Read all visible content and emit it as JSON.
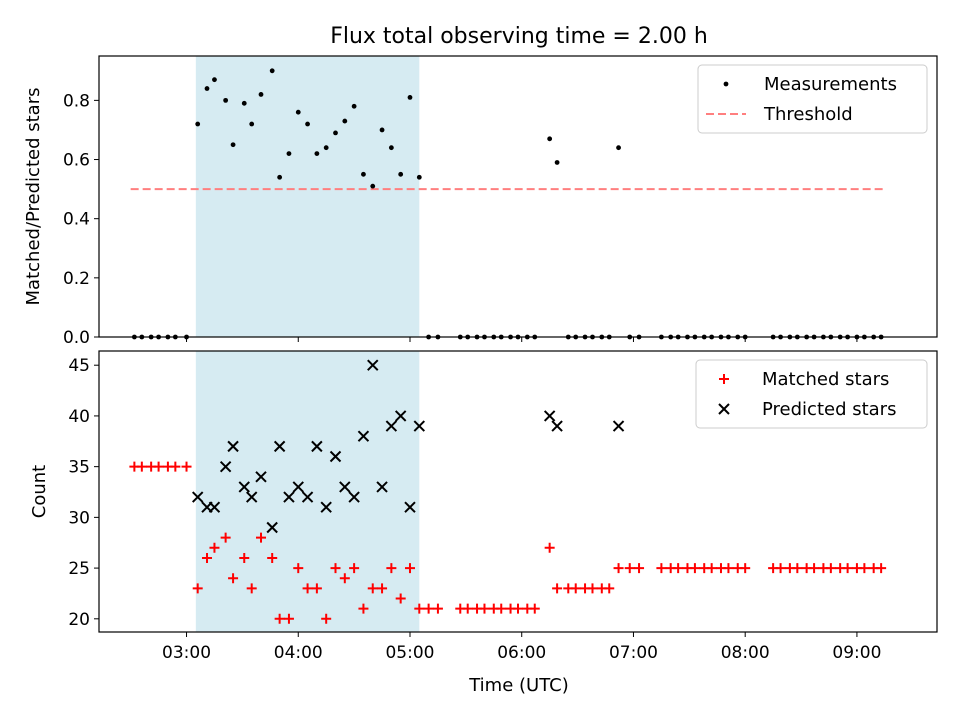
{
  "title": "Flux total observing time = 2.00 h",
  "colors": {
    "shade": "#add8e6",
    "measurement": "#000000",
    "threshold": "#ff7f7f",
    "matched": "#ff0000",
    "predicted": "#000000"
  },
  "chart_data": [
    {
      "type": "scatter",
      "ylabel": "Matched/Predicted stars",
      "xlim": [
        "02:13",
        "09:43"
      ],
      "ylim": [
        0,
        0.95
      ],
      "yticks": [
        "0.0",
        "0.2",
        "0.4",
        "0.6",
        "0.8"
      ],
      "shaded_interval": [
        "03:05",
        "05:05"
      ],
      "legend": {
        "position": "top-right",
        "items": [
          "Measurements",
          "Threshold"
        ]
      },
      "threshold": {
        "name": "Threshold",
        "value": 0.5,
        "x_range": [
          "02:30",
          "09:15"
        ]
      },
      "series": [
        {
          "name": "Measurements",
          "points": [
            [
              "02:32",
              0
            ],
            [
              "02:36",
              0
            ],
            [
              "02:41",
              0
            ],
            [
              "02:45",
              0
            ],
            [
              "02:50",
              0
            ],
            [
              "02:54",
              0
            ],
            [
              "03:00",
              0
            ],
            [
              "03:06",
              0.72
            ],
            [
              "03:11",
              0.84
            ],
            [
              "03:15",
              0.87
            ],
            [
              "03:21",
              0.8
            ],
            [
              "03:25",
              0.65
            ],
            [
              "03:31",
              0.79
            ],
            [
              "03:35",
              0.72
            ],
            [
              "03:40",
              0.82
            ],
            [
              "03:46",
              0.9
            ],
            [
              "03:50",
              0.54
            ],
            [
              "03:55",
              0.62
            ],
            [
              "04:00",
              0.76
            ],
            [
              "04:05",
              0.72
            ],
            [
              "04:10",
              0.62
            ],
            [
              "04:15",
              0.64
            ],
            [
              "04:20",
              0.69
            ],
            [
              "04:25",
              0.73
            ],
            [
              "04:30",
              0.78
            ],
            [
              "04:35",
              0.55
            ],
            [
              "04:40",
              0.51
            ],
            [
              "04:45",
              0.7
            ],
            [
              "04:50",
              0.64
            ],
            [
              "04:55",
              0.55
            ],
            [
              "05:00",
              0.81
            ],
            [
              "05:05",
              0.54
            ],
            [
              "05:10",
              0
            ],
            [
              "05:15",
              0
            ],
            [
              "05:27",
              0
            ],
            [
              "05:31",
              0
            ],
            [
              "05:36",
              0
            ],
            [
              "05:40",
              0
            ],
            [
              "05:45",
              0
            ],
            [
              "05:49",
              0
            ],
            [
              "05:54",
              0
            ],
            [
              "05:58",
              0
            ],
            [
              "06:03",
              0
            ],
            [
              "06:07",
              0
            ],
            [
              "06:15",
              0.67
            ],
            [
              "06:19",
              0.59
            ],
            [
              "06:25",
              0
            ],
            [
              "06:29",
              0
            ],
            [
              "06:34",
              0
            ],
            [
              "06:38",
              0
            ],
            [
              "06:43",
              0
            ],
            [
              "06:47",
              0
            ],
            [
              "06:52",
              0.64
            ],
            [
              "06:58",
              0
            ],
            [
              "07:03",
              0
            ],
            [
              "07:15",
              0
            ],
            [
              "07:20",
              0
            ],
            [
              "07:24",
              0
            ],
            [
              "07:29",
              0
            ],
            [
              "07:33",
              0
            ],
            [
              "07:38",
              0
            ],
            [
              "07:42",
              0
            ],
            [
              "07:47",
              0
            ],
            [
              "07:51",
              0
            ],
            [
              "07:56",
              0
            ],
            [
              "08:00",
              0
            ],
            [
              "08:15",
              0
            ],
            [
              "08:19",
              0
            ],
            [
              "08:24",
              0
            ],
            [
              "08:28",
              0
            ],
            [
              "08:33",
              0
            ],
            [
              "08:37",
              0
            ],
            [
              "08:42",
              0
            ],
            [
              "08:46",
              0
            ],
            [
              "08:51",
              0
            ],
            [
              "08:55",
              0
            ],
            [
              "09:00",
              0
            ],
            [
              "09:04",
              0
            ],
            [
              "09:09",
              0
            ],
            [
              "09:13",
              0
            ]
          ]
        }
      ]
    },
    {
      "type": "scatter",
      "xlabel": "Time (UTC)",
      "ylabel": "Count",
      "xlim": [
        "02:13",
        "09:43"
      ],
      "ylim": [
        18.7,
        46.4
      ],
      "yticks": [
        "20",
        "25",
        "30",
        "35",
        "40",
        "45"
      ],
      "xticks": [
        "03:00",
        "04:00",
        "05:00",
        "06:00",
        "07:00",
        "08:00",
        "09:00"
      ],
      "shaded_interval": [
        "03:05",
        "05:05"
      ],
      "legend": {
        "position": "top-right",
        "items": [
          "Matched stars",
          "Predicted stars"
        ]
      },
      "series": [
        {
          "name": "Matched stars",
          "points": [
            [
              "02:32",
              35
            ],
            [
              "02:36",
              35
            ],
            [
              "02:41",
              35
            ],
            [
              "02:45",
              35
            ],
            [
              "02:50",
              35
            ],
            [
              "02:54",
              35
            ],
            [
              "03:00",
              35
            ],
            [
              "03:06",
              23
            ],
            [
              "03:11",
              26
            ],
            [
              "03:15",
              27
            ],
            [
              "03:21",
              28
            ],
            [
              "03:25",
              24
            ],
            [
              "03:31",
              26
            ],
            [
              "03:35",
              23
            ],
            [
              "03:40",
              28
            ],
            [
              "03:46",
              26
            ],
            [
              "03:50",
              20
            ],
            [
              "03:55",
              20
            ],
            [
              "04:00",
              25
            ],
            [
              "04:05",
              23
            ],
            [
              "04:10",
              23
            ],
            [
              "04:15",
              20
            ],
            [
              "04:20",
              25
            ],
            [
              "04:25",
              24
            ],
            [
              "04:30",
              25
            ],
            [
              "04:35",
              21
            ],
            [
              "04:40",
              23
            ],
            [
              "04:45",
              23
            ],
            [
              "04:50",
              25
            ],
            [
              "04:55",
              22
            ],
            [
              "05:00",
              25
            ],
            [
              "05:05",
              21
            ],
            [
              "05:10",
              21
            ],
            [
              "05:15",
              21
            ],
            [
              "05:27",
              21
            ],
            [
              "05:31",
              21
            ],
            [
              "05:36",
              21
            ],
            [
              "05:40",
              21
            ],
            [
              "05:45",
              21
            ],
            [
              "05:49",
              21
            ],
            [
              "05:54",
              21
            ],
            [
              "05:58",
              21
            ],
            [
              "06:03",
              21
            ],
            [
              "06:07",
              21
            ],
            [
              "06:15",
              27
            ],
            [
              "06:19",
              23
            ],
            [
              "06:25",
              23
            ],
            [
              "06:29",
              23
            ],
            [
              "06:34",
              23
            ],
            [
              "06:38",
              23
            ],
            [
              "06:43",
              23
            ],
            [
              "06:47",
              23
            ],
            [
              "06:52",
              25
            ],
            [
              "06:58",
              25
            ],
            [
              "07:03",
              25
            ],
            [
              "07:15",
              25
            ],
            [
              "07:20",
              25
            ],
            [
              "07:24",
              25
            ],
            [
              "07:29",
              25
            ],
            [
              "07:33",
              25
            ],
            [
              "07:38",
              25
            ],
            [
              "07:42",
              25
            ],
            [
              "07:47",
              25
            ],
            [
              "07:51",
              25
            ],
            [
              "07:56",
              25
            ],
            [
              "08:00",
              25
            ],
            [
              "08:15",
              25
            ],
            [
              "08:19",
              25
            ],
            [
              "08:24",
              25
            ],
            [
              "08:28",
              25
            ],
            [
              "08:33",
              25
            ],
            [
              "08:37",
              25
            ],
            [
              "08:42",
              25
            ],
            [
              "08:46",
              25
            ],
            [
              "08:51",
              25
            ],
            [
              "08:55",
              25
            ],
            [
              "09:00",
              25
            ],
            [
              "09:04",
              25
            ],
            [
              "09:09",
              25
            ],
            [
              "09:13",
              25
            ]
          ]
        },
        {
          "name": "Predicted stars",
          "points": [
            [
              "03:06",
              32
            ],
            [
              "03:11",
              31
            ],
            [
              "03:15",
              31
            ],
            [
              "03:21",
              35
            ],
            [
              "03:25",
              37
            ],
            [
              "03:31",
              33
            ],
            [
              "03:35",
              32
            ],
            [
              "03:40",
              34
            ],
            [
              "03:46",
              29
            ],
            [
              "03:50",
              37
            ],
            [
              "03:55",
              32
            ],
            [
              "04:00",
              33
            ],
            [
              "04:05",
              32
            ],
            [
              "04:10",
              37
            ],
            [
              "04:15",
              31
            ],
            [
              "04:20",
              36
            ],
            [
              "04:25",
              33
            ],
            [
              "04:30",
              32
            ],
            [
              "04:35",
              38
            ],
            [
              "04:40",
              45
            ],
            [
              "04:45",
              33
            ],
            [
              "04:50",
              39
            ],
            [
              "04:55",
              40
            ],
            [
              "05:00",
              31
            ],
            [
              "05:05",
              39
            ],
            [
              "06:15",
              40
            ],
            [
              "06:19",
              39
            ],
            [
              "06:52",
              39
            ]
          ]
        }
      ]
    }
  ]
}
